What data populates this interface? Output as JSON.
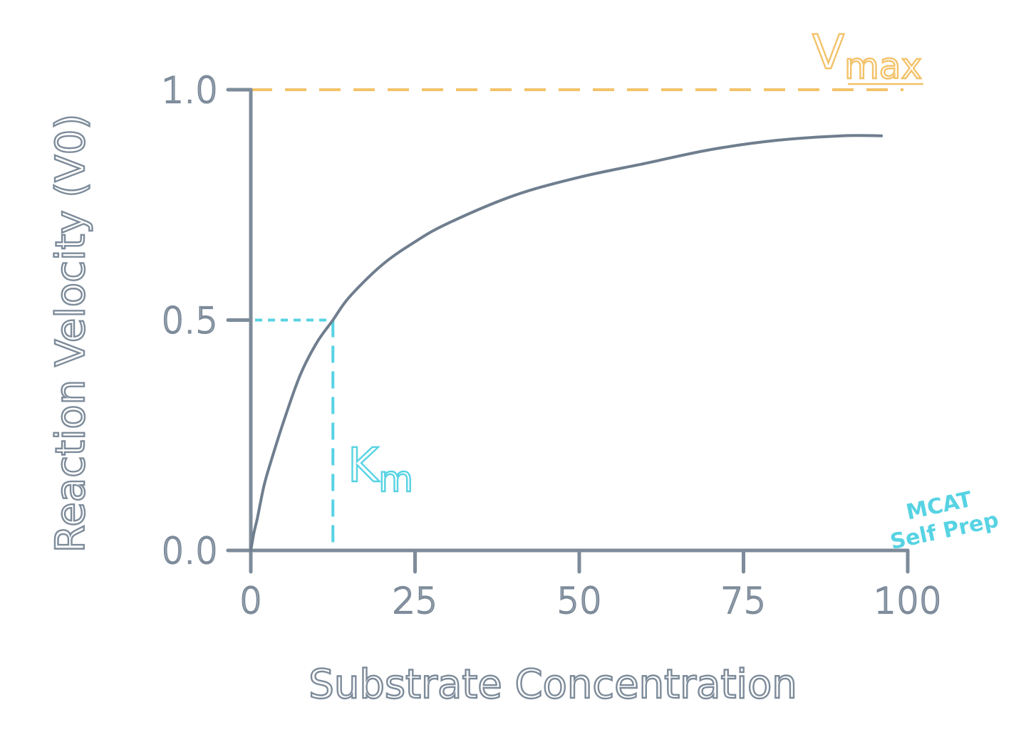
{
  "chart_data": {
    "type": "line",
    "title": "",
    "xlabel": "Substrate Concentration",
    "ylabel": "Reaction Velocity (V0)",
    "xlim": [
      0,
      100
    ],
    "ylim": [
      0,
      1.0
    ],
    "x_ticks": [
      "0",
      "25",
      "50",
      "75",
      "100"
    ],
    "y_ticks": [
      "0.0",
      "0.5",
      "1.0"
    ],
    "grid": false,
    "series": [
      {
        "color": "#6f7e8e",
        "x": [
          0,
          0.5,
          1,
          2,
          3,
          5,
          7.5,
          10,
          12.5,
          15,
          20,
          25,
          30,
          40,
          50,
          60,
          70,
          80,
          90,
          96
        ],
        "y": [
          0.0,
          0.04,
          0.07,
          0.14,
          0.19,
          0.28,
          0.38,
          0.45,
          0.5,
          0.55,
          0.62,
          0.67,
          0.71,
          0.77,
          0.81,
          0.84,
          0.87,
          0.89,
          0.9,
          0.9
        ]
      }
    ],
    "annotations": [
      {
        "label_main": "V",
        "label_sub": "max",
        "y": 1.0,
        "style": "dashed",
        "color": "#f3c26a"
      },
      {
        "label_main": "K",
        "label_sub": "m",
        "x": 12.5,
        "y": 0.5,
        "style": "dashed",
        "color": "#57d3e3"
      }
    ]
  },
  "watermark": {
    "line1": "MCAT",
    "line2": "Self Prep",
    "color": "#57d3e3"
  }
}
